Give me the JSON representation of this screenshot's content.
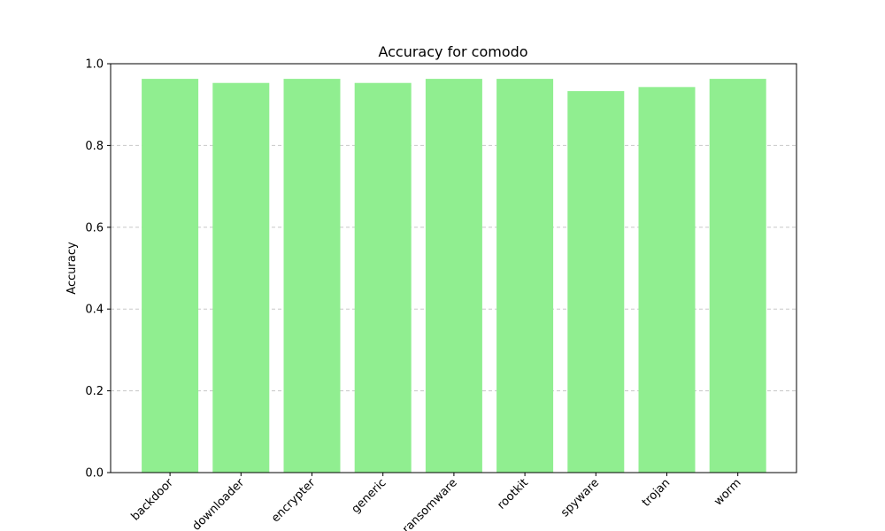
{
  "chart_data": {
    "type": "bar",
    "title": "Accuracy for comodo",
    "xlabel": "",
    "ylabel": "Accuracy",
    "categories": [
      "backdoor",
      "downloader",
      "encrypter",
      "generic",
      "ransomware",
      "rootkit",
      "spyware",
      "trojan",
      "worm"
    ],
    "values": [
      0.963,
      0.953,
      0.963,
      0.953,
      0.963,
      0.963,
      0.933,
      0.943,
      0.963
    ],
    "ylim": [
      0,
      1.0
    ],
    "yticks": [
      "0.0",
      "0.2",
      "0.4",
      "0.6",
      "0.8",
      "1.0"
    ],
    "grid": "y-dashed",
    "legend": "none",
    "bar_color": "#90ee90",
    "grid_color": "#c8c8c8"
  }
}
